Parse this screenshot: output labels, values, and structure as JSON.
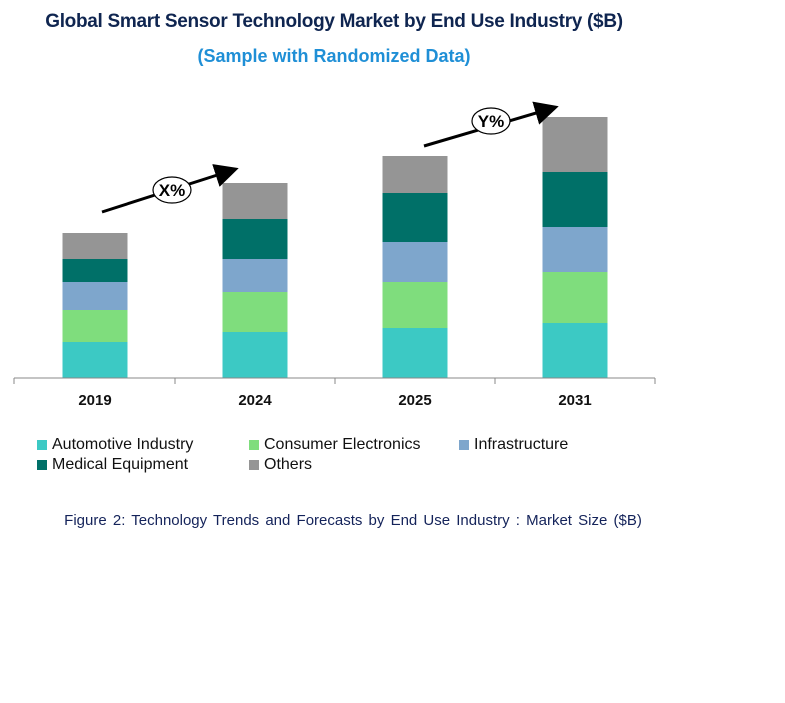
{
  "title": "Global Smart Sensor Technology Market by End Use Industry ($B)",
  "subtitle": "(Sample with Randomized Data)",
  "caption": "Figure 2: Technology  Trends  and Forecasts by End Use Industry   : Market Size ($B)",
  "growth_labels": [
    "X%",
    "Y%"
  ],
  "chart_data": {
    "type": "bar",
    "stacked": true,
    "categories": [
      "2019",
      "2024",
      "2025",
      "2031"
    ],
    "series": [
      {
        "name": "Automotive Industry",
        "color": "#3cc9c4",
        "values": [
          3.6,
          4.6,
          5.0,
          5.5
        ]
      },
      {
        "name": "Consumer Electronics",
        "color": "#7fdd7d",
        "values": [
          3.2,
          4.0,
          4.6,
          5.1
        ]
      },
      {
        "name": "Infrastructure",
        "color": "#7ea6cc",
        "values": [
          2.8,
          3.3,
          4.0,
          4.5
        ]
      },
      {
        "name": "Medical Equipment",
        "color": "#007068",
        "values": [
          2.3,
          4.0,
          4.9,
          5.5
        ]
      },
      {
        "name": "Others",
        "color": "#959595",
        "values": [
          2.6,
          3.6,
          3.7,
          5.5
        ]
      }
    ],
    "ylim": [
      0,
      26.2
    ],
    "legend_position": "bottom",
    "grid": false
  }
}
